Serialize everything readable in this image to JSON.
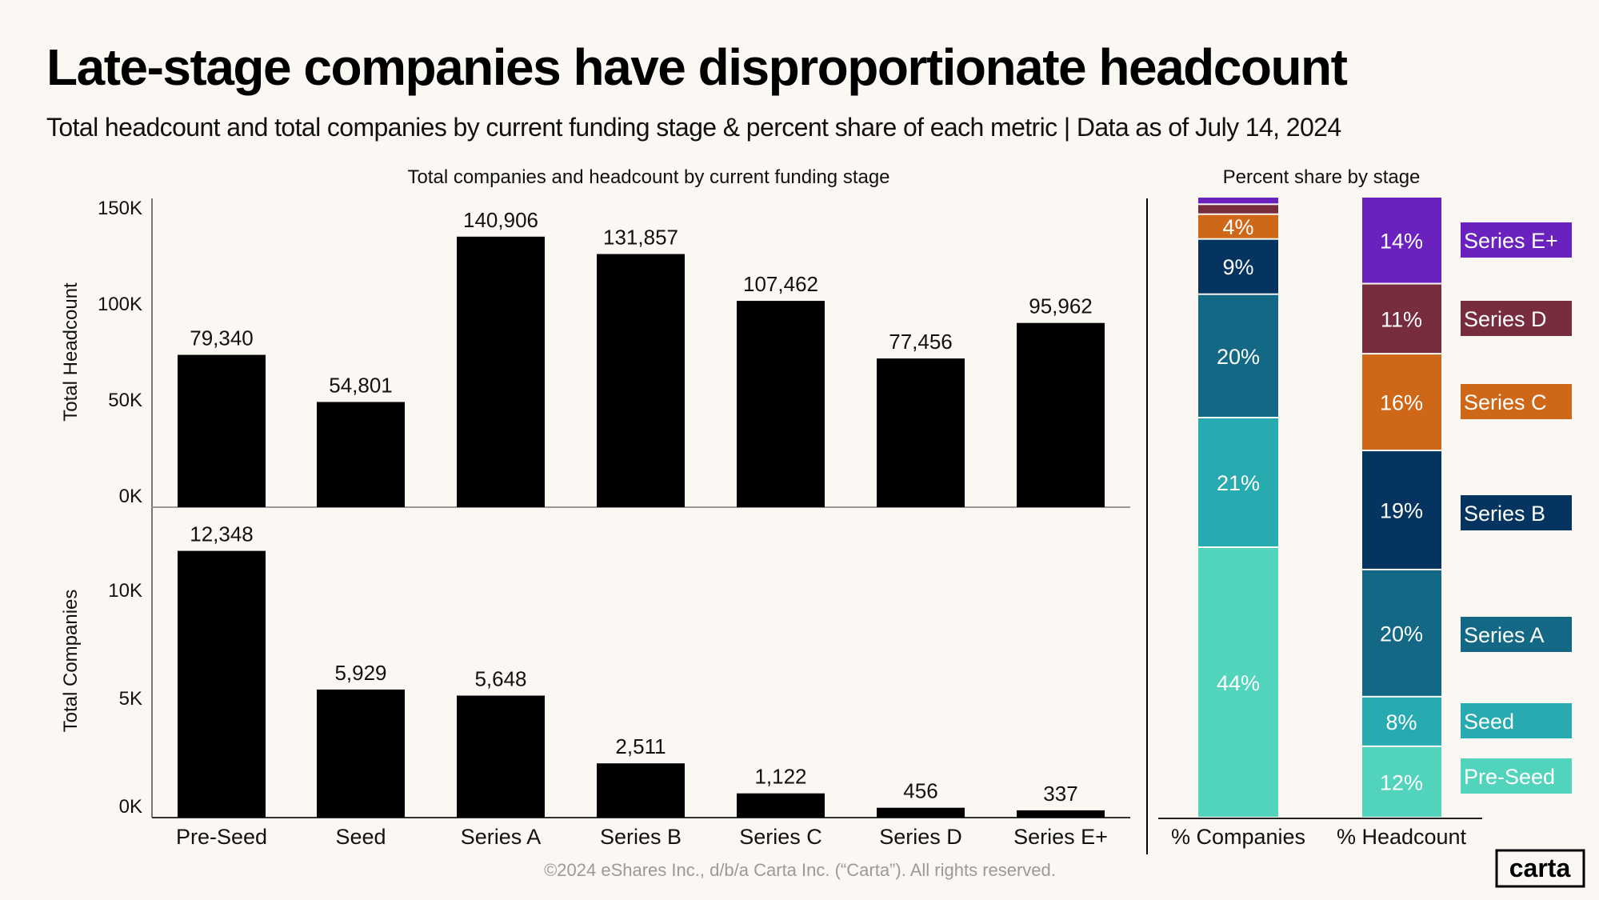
{
  "title": "Late-stage companies have disproportionate headcount",
  "subtitle": "Total headcount and total companies by current funding stage & percent share of each metric | Data as of July 14, 2024",
  "footer": "©2024 eShares Inc., d/b/a Carta Inc. (“Carta”). All rights reserved.",
  "logo": "carta",
  "colors": {
    "background": "#fbf8f4",
    "bars": "#000000",
    "Pre-Seed": "#52d4bc",
    "Seed": "#27aab0",
    "Series A": "#136985",
    "Series B": "#04345f",
    "Series C": "#cf6718",
    "Series D": "#772d3e",
    "Series E+": "#6b21bd"
  },
  "chart_data": [
    {
      "type": "bar",
      "title": "Total companies and headcount by current funding stage",
      "categories": [
        "Pre-Seed",
        "Seed",
        "Series A",
        "Series B",
        "Series C",
        "Series D",
        "Series E+"
      ],
      "panels": [
        {
          "ylabel": "Total Headcount",
          "ylim": [
            0,
            150000
          ],
          "yticks": [
            "0K",
            "50K",
            "100K",
            "150K"
          ],
          "ytick_values": [
            0,
            50000,
            100000,
            150000
          ],
          "values": [
            79340,
            54801,
            140906,
            131857,
            107462,
            77456,
            95962
          ],
          "labels": [
            "79,340",
            "54,801",
            "140,906",
            "131,857",
            "107,462",
            "77,456",
            "95,962"
          ]
        },
        {
          "ylabel": "Total Companies",
          "ylim": [
            0,
            13000
          ],
          "yticks": [
            "0K",
            "5K",
            "10K"
          ],
          "ytick_values": [
            0,
            5000,
            10000
          ],
          "values": [
            12348,
            5929,
            5648,
            2511,
            1122,
            456,
            337
          ],
          "labels": [
            "12,348",
            "5,929",
            "5,648",
            "2,511",
            "1,122",
            "456",
            "337"
          ]
        }
      ],
      "grid": false
    },
    {
      "type": "bar",
      "stacked": true,
      "title": "Percent share by stage",
      "categories": [
        "% Companies",
        "% Headcount"
      ],
      "ylim": [
        0,
        100
      ],
      "legend_position": "right",
      "series": [
        {
          "name": "Pre-Seed",
          "values": [
            43.6,
            11.5
          ],
          "labels": [
            "44%",
            "12%"
          ]
        },
        {
          "name": "Seed",
          "values": [
            20.9,
            8.0
          ],
          "labels": [
            "21%",
            "8%"
          ]
        },
        {
          "name": "Series A",
          "values": [
            19.9,
            20.5
          ],
          "labels": [
            "20%",
            "20%"
          ]
        },
        {
          "name": "Series B",
          "values": [
            8.9,
            19.2
          ],
          "labels": [
            "9%",
            "19%"
          ]
        },
        {
          "name": "Series C",
          "values": [
            4.0,
            15.6
          ],
          "labels": [
            "4%",
            "16%"
          ]
        },
        {
          "name": "Series D",
          "values": [
            1.6,
            11.3
          ],
          "labels": [
            "",
            "11%"
          ]
        },
        {
          "name": "Series E+",
          "values": [
            1.2,
            14.0
          ],
          "labels": [
            "",
            "14%"
          ]
        }
      ]
    }
  ]
}
